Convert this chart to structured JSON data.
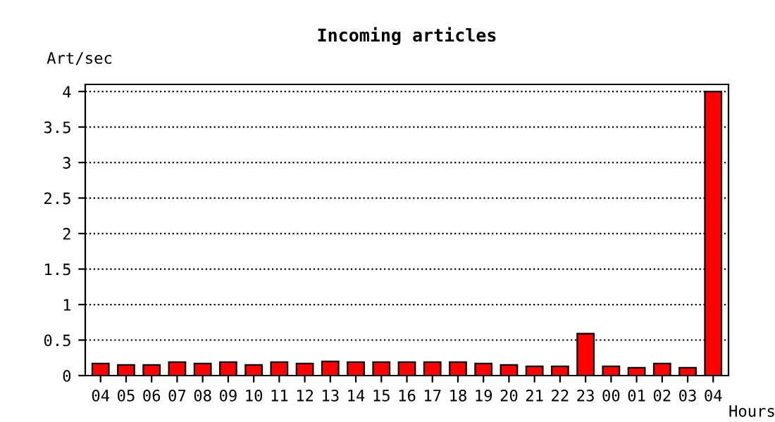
{
  "chart_data": {
    "type": "bar",
    "title": "Incoming articles",
    "ylabel": "Art/sec",
    "xlabel": "Hours",
    "categories": [
      "04",
      "05",
      "06",
      "07",
      "08",
      "09",
      "10",
      "11",
      "12",
      "13",
      "14",
      "15",
      "16",
      "17",
      "18",
      "19",
      "20",
      "21",
      "22",
      "23",
      "00",
      "01",
      "02",
      "03",
      "04"
    ],
    "values": [
      0.17,
      0.15,
      0.15,
      0.19,
      0.17,
      0.19,
      0.15,
      0.19,
      0.17,
      0.2,
      0.19,
      0.19,
      0.19,
      0.19,
      0.19,
      0.17,
      0.15,
      0.13,
      0.13,
      0.59,
      0.13,
      0.11,
      0.17,
      0.11,
      4
    ],
    "color": "#ff0000",
    "ylim": [
      0,
      4.1
    ],
    "yticks": [
      0,
      0.5,
      1,
      1.5,
      2,
      2.5,
      3,
      3.5,
      4
    ],
    "grid": "y",
    "line_style": "dotted"
  }
}
